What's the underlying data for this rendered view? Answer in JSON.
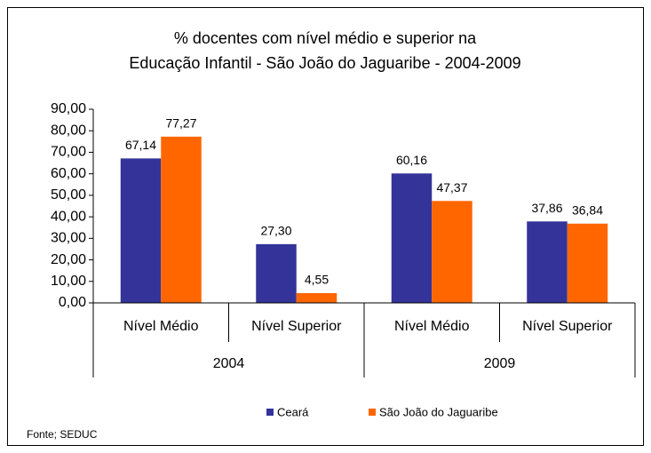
{
  "chart_data": {
    "type": "bar",
    "title": [
      "% docentes com nível médio e superior na",
      "Educação Infantil - São João do Jaguaribe - 2004-2009"
    ],
    "categories": [
      "Nível Médio",
      "Nível Superior",
      "Nível Médio",
      "Nível Superior"
    ],
    "groups": [
      "2004",
      "2009"
    ],
    "series": [
      {
        "name": "Ceará",
        "color": "#333399",
        "values": [
          67.14,
          27.3,
          60.16,
          37.86
        ],
        "value_labels": [
          "67,14",
          "27,30",
          "60,16",
          "37,86"
        ]
      },
      {
        "name": "São João do Jaguaribe",
        "color": "#ff6600",
        "values": [
          77.27,
          4.55,
          47.37,
          36.84
        ],
        "value_labels": [
          "77,27",
          "4,55",
          "47,37",
          "36,84"
        ]
      }
    ],
    "ylim": [
      0,
      90
    ],
    "yticks": [
      {
        "value": 0,
        "label": "0,00"
      },
      {
        "value": 10,
        "label": "10,00"
      },
      {
        "value": 20,
        "label": "20,00"
      },
      {
        "value": 30,
        "label": "30,00"
      },
      {
        "value": 40,
        "label": "40,00"
      },
      {
        "value": 50,
        "label": "50,00"
      },
      {
        "value": 60,
        "label": "60,00"
      },
      {
        "value": 70,
        "label": "70,00"
      },
      {
        "value": 80,
        "label": "80,00"
      },
      {
        "value": 90,
        "label": "90,00"
      }
    ],
    "grid": false,
    "legend": "bottom",
    "source": "Fonte; SEDUC"
  }
}
